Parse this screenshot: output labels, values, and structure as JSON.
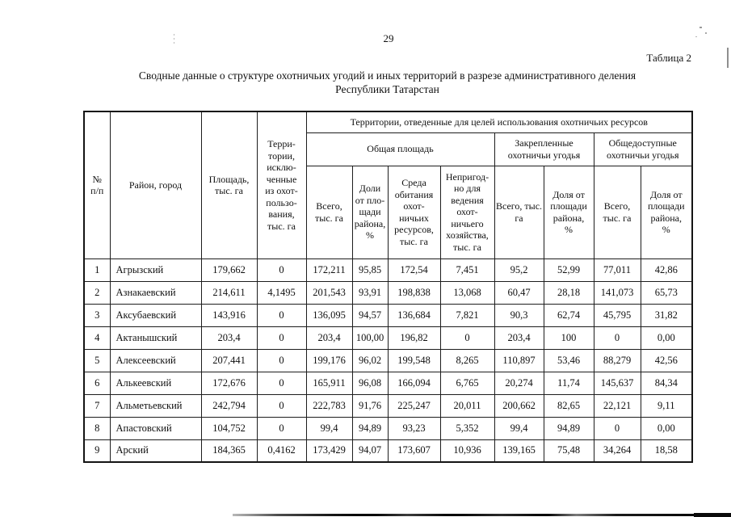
{
  "page": {
    "number": "29",
    "table_label": "Таблица 2",
    "title_line1": "Сводные данные о структуре охотничьих угодий и иных территорий в разрезе административного деления",
    "title_line2": "Республики Татарстан"
  },
  "table": {
    "headers": {
      "num": "№\nп/п",
      "district": "Район, город",
      "area": "Площадь,\nтыс. га",
      "excluded": "Терри-\nтории,\nисклю-\nченные\nиз охот-\nпользо-\nвания,\nтыс. га",
      "allocated_group": "Территории, отведенные для целей использования охотничьих ресурсов",
      "total_area_group": "Общая площадь",
      "assigned_group": "Закрепленные\nохотничьи угодья",
      "public_group": "Общедоступные\nохотничьи угодья",
      "sub": [
        "Всего,\nтыс. га",
        "Доли\nот пло-\nщади\nрайона,\n%",
        "Среда\nобитания\nохот-\nничьих\nресурсов,\nтыс. га",
        "Непригод-\nно для\nведения\nохот-\nничьего\nхозяйства,\nтыс. га",
        "Всего, тыс.\nга",
        "Доля от\nплощади\nрайона,\n%",
        "Всего,\nтыс. га",
        "Доля от\nплощади\nрайона,\n%"
      ]
    },
    "rows": [
      [
        "1",
        "Агрызский",
        "179,662",
        "0",
        "172,211",
        "95,85",
        "172,54",
        "7,451",
        "95,2",
        "52,99",
        "77,011",
        "42,86"
      ],
      [
        "2",
        "Азнакаевский",
        "214,611",
        "4,1495",
        "201,543",
        "93,91",
        "198,838",
        "13,068",
        "60,47",
        "28,18",
        "141,073",
        "65,73"
      ],
      [
        "3",
        "Аксубаевский",
        "143,916",
        "0",
        "136,095",
        "94,57",
        "136,684",
        "7,821",
        "90,3",
        "62,74",
        "45,795",
        "31,82"
      ],
      [
        "4",
        "Актанышский",
        "203,4",
        "0",
        "203,4",
        "100,00",
        "196,82",
        "0",
        "203,4",
        "100",
        "0",
        "0,00"
      ],
      [
        "5",
        "Алексеевский",
        "207,441",
        "0",
        "199,176",
        "96,02",
        "199,548",
        "8,265",
        "110,897",
        "53,46",
        "88,279",
        "42,56"
      ],
      [
        "6",
        "Алькеевский",
        "172,676",
        "0",
        "165,911",
        "96,08",
        "166,094",
        "6,765",
        "20,274",
        "11,74",
        "145,637",
        "84,34"
      ],
      [
        "7",
        "Альметьевский",
        "242,794",
        "0",
        "222,783",
        "91,76",
        "225,247",
        "20,011",
        "200,662",
        "82,65",
        "22,121",
        "9,11"
      ],
      [
        "8",
        "Апастовский",
        "104,752",
        "0",
        "99,4",
        "94,89",
        "93,23",
        "5,352",
        "99,4",
        "94,89",
        "0",
        "0,00"
      ],
      [
        "9",
        "Арский",
        "184,365",
        "0,4162",
        "173,429",
        "94,07",
        "173,607",
        "10,936",
        "139,165",
        "75,48",
        "34,264",
        "18,58"
      ]
    ]
  }
}
